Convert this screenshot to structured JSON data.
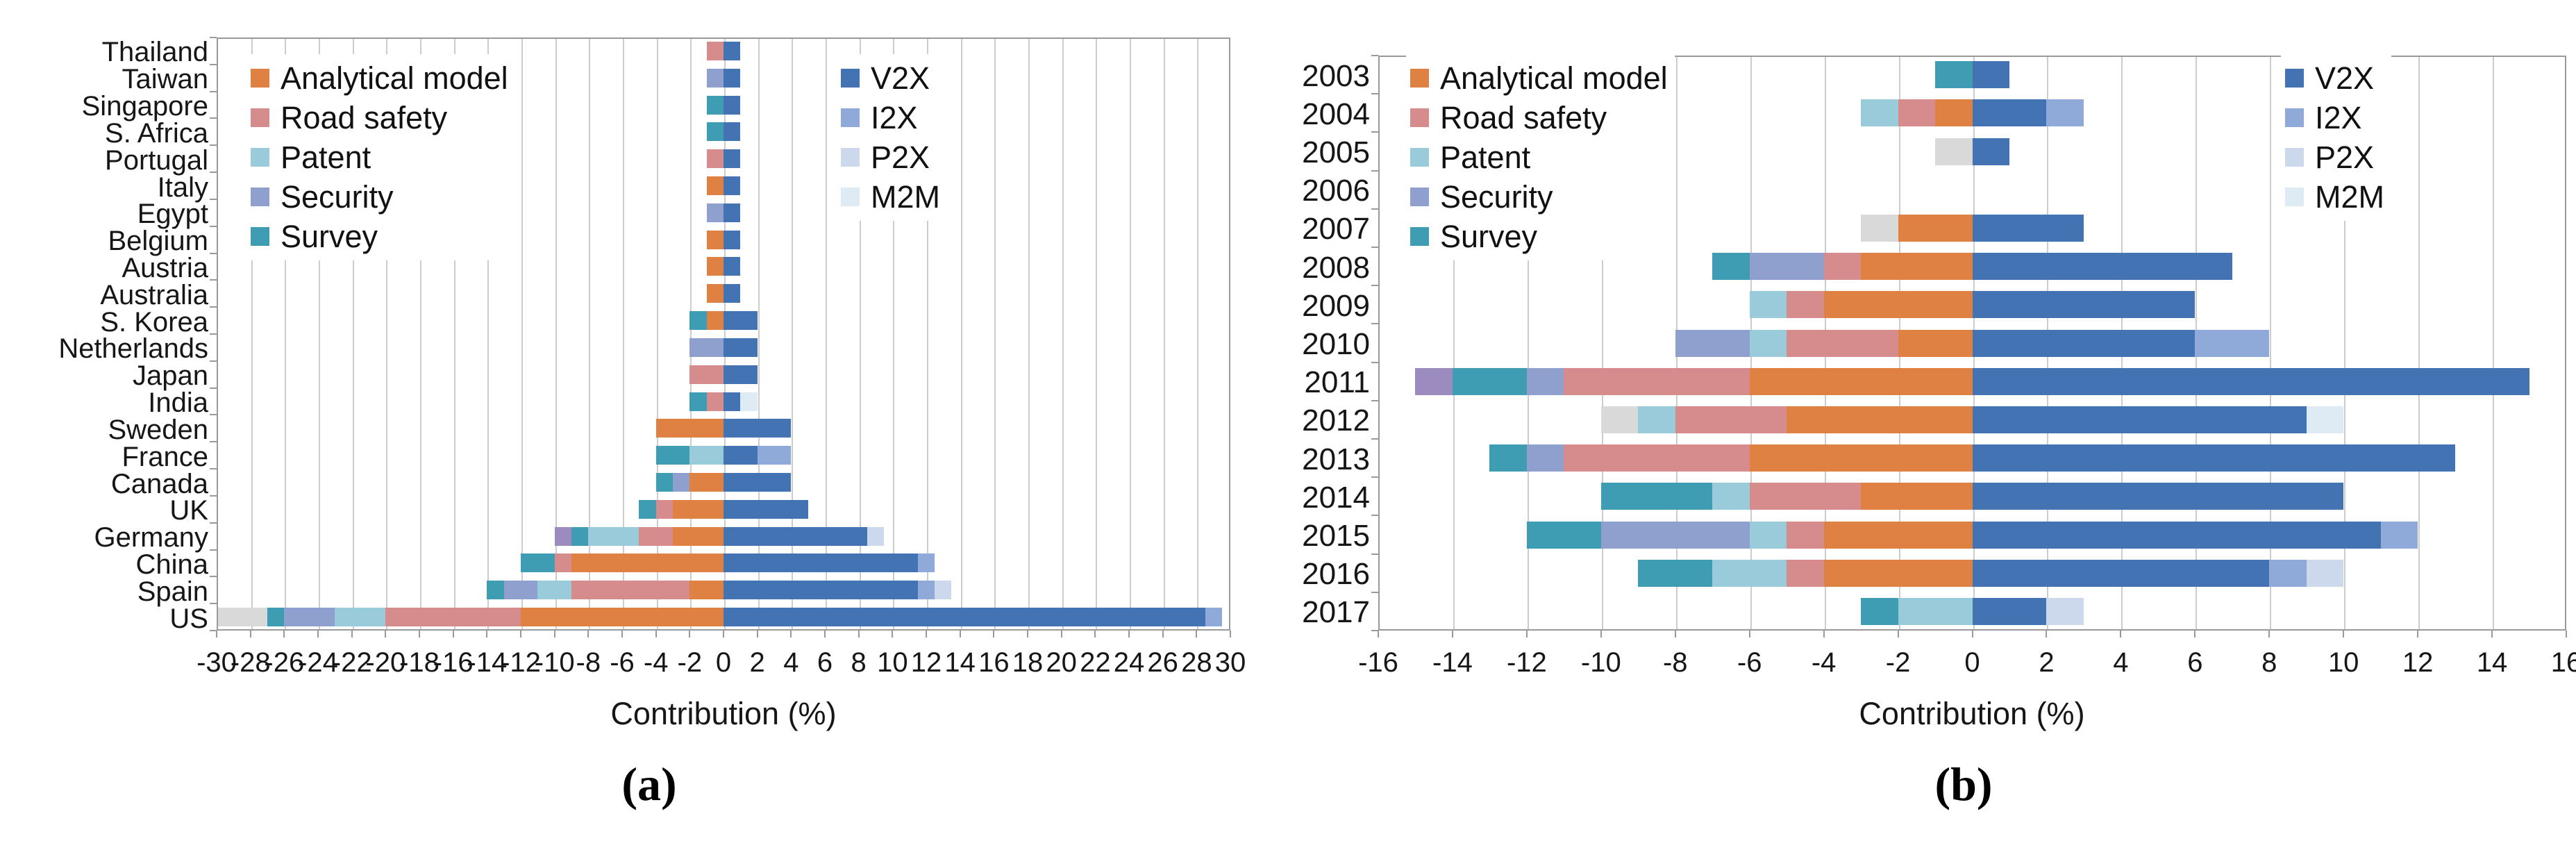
{
  "figure": {
    "description": "Two horizontal diverging stacked bar charts of research contribution percentages",
    "xlabel": "Contribution (%)"
  },
  "colors": {
    "AM": "#de8142",
    "RS": "#d68b8d",
    "PAT": "#9acbdb",
    "SEC": "#8f9fce",
    "SUR": "#3e9db3",
    "V2X": "#4473b3",
    "I2X": "#8faad8",
    "P2X": "#ccd8ec",
    "M2M": "#deebf4",
    "GRAY": "#d9d9d9",
    "PUR": "#9b8bbe"
  },
  "category_labels": {
    "AM": "Analytical model",
    "RS": "Road safety",
    "PAT": "Patent",
    "SEC": "Security",
    "SUR": "Survey",
    "V2X": "V2X",
    "I2X": "I2X",
    "P2X": "P2X",
    "M2M": "M2M",
    "GRAY": "Other (gray, not in legend)",
    "PUR": "Other (purple, not in legend)"
  },
  "legend_left_keys": [
    "AM",
    "RS",
    "PAT",
    "SEC",
    "SUR"
  ],
  "legend_right_keys": [
    "V2X",
    "I2X",
    "P2X",
    "M2M"
  ],
  "chart_data": [
    {
      "id": "a",
      "type": "bar",
      "orientation": "horizontal-diverging-stacked",
      "caption": "(a)",
      "xlabel": "Contribution (%)",
      "xlim": [
        -30,
        30
      ],
      "xtick_step": 2,
      "xticks": [
        -30,
        -28,
        -26,
        -24,
        -22,
        -20,
        -18,
        -16,
        -14,
        -12,
        -10,
        -8,
        -6,
        -4,
        -2,
        0,
        2,
        4,
        6,
        8,
        10,
        12,
        14,
        16,
        18,
        20,
        22,
        24,
        26,
        28,
        30
      ],
      "grid": true,
      "legend_positions": [
        "upper-left-inside",
        "upper-right-inside"
      ],
      "note": "neg and pos segment lists are ordered from the zero line outward; values are percent",
      "rows": [
        {
          "label": "Thailand",
          "neg": [
            [
              "RS",
              1
            ]
          ],
          "pos": [
            [
              "V2X",
              1
            ]
          ]
        },
        {
          "label": "Taiwan",
          "neg": [
            [
              "SEC",
              1
            ]
          ],
          "pos": [
            [
              "V2X",
              1
            ]
          ]
        },
        {
          "label": "Singapore",
          "neg": [
            [
              "SUR",
              1
            ]
          ],
          "pos": [
            [
              "V2X",
              1
            ]
          ]
        },
        {
          "label": "S. Africa",
          "neg": [
            [
              "SUR",
              1
            ]
          ],
          "pos": [
            [
              "V2X",
              1
            ]
          ]
        },
        {
          "label": "Portugal",
          "neg": [
            [
              "RS",
              1
            ]
          ],
          "pos": [
            [
              "V2X",
              1
            ]
          ]
        },
        {
          "label": "Italy",
          "neg": [
            [
              "AM",
              1
            ]
          ],
          "pos": [
            [
              "V2X",
              1
            ]
          ]
        },
        {
          "label": "Egypt",
          "neg": [
            [
              "SEC",
              1
            ]
          ],
          "pos": [
            [
              "V2X",
              1
            ]
          ]
        },
        {
          "label": "Belgium",
          "neg": [
            [
              "AM",
              1
            ]
          ],
          "pos": [
            [
              "V2X",
              1
            ]
          ]
        },
        {
          "label": "Austria",
          "neg": [
            [
              "AM",
              1
            ]
          ],
          "pos": [
            [
              "V2X",
              1
            ]
          ]
        },
        {
          "label": "Australia",
          "neg": [
            [
              "AM",
              1
            ]
          ],
          "pos": [
            [
              "V2X",
              1
            ]
          ]
        },
        {
          "label": "S. Korea",
          "neg": [
            [
              "AM",
              1
            ],
            [
              "SUR",
              1
            ]
          ],
          "pos": [
            [
              "V2X",
              2
            ]
          ]
        },
        {
          "label": "Netherlands",
          "neg": [
            [
              "SEC",
              2
            ]
          ],
          "pos": [
            [
              "V2X",
              2
            ]
          ]
        },
        {
          "label": "Japan",
          "neg": [
            [
              "RS",
              2
            ]
          ],
          "pos": [
            [
              "V2X",
              2
            ]
          ]
        },
        {
          "label": "India",
          "neg": [
            [
              "RS",
              1
            ],
            [
              "SUR",
              1
            ]
          ],
          "pos": [
            [
              "V2X",
              1
            ],
            [
              "M2M",
              1
            ]
          ]
        },
        {
          "label": "Sweden",
          "neg": [
            [
              "AM",
              4
            ]
          ],
          "pos": [
            [
              "V2X",
              4
            ]
          ]
        },
        {
          "label": "France",
          "neg": [
            [
              "PAT",
              2
            ],
            [
              "SUR",
              2
            ]
          ],
          "pos": [
            [
              "V2X",
              2
            ],
            [
              "I2X",
              2
            ]
          ]
        },
        {
          "label": "Canada",
          "neg": [
            [
              "AM",
              2
            ],
            [
              "SEC",
              1
            ],
            [
              "SUR",
              1
            ]
          ],
          "pos": [
            [
              "V2X",
              4
            ]
          ]
        },
        {
          "label": "UK",
          "neg": [
            [
              "AM",
              3
            ],
            [
              "RS",
              1
            ],
            [
              "SUR",
              1
            ]
          ],
          "pos": [
            [
              "V2X",
              5
            ]
          ]
        },
        {
          "label": "Germany",
          "neg": [
            [
              "AM",
              3
            ],
            [
              "RS",
              2
            ],
            [
              "PAT",
              3
            ],
            [
              "SUR",
              1
            ],
            [
              "PUR",
              1
            ]
          ],
          "pos": [
            [
              "V2X",
              8.5
            ],
            [
              "P2X",
              1
            ]
          ]
        },
        {
          "label": "China",
          "neg": [
            [
              "AM",
              9
            ],
            [
              "RS",
              1
            ],
            [
              "SUR",
              2
            ]
          ],
          "pos": [
            [
              "V2X",
              11.5
            ],
            [
              "I2X",
              1
            ]
          ]
        },
        {
          "label": "Spain",
          "neg": [
            [
              "AM",
              2
            ],
            [
              "RS",
              7
            ],
            [
              "PAT",
              2
            ],
            [
              "SEC",
              2
            ],
            [
              "SUR",
              1
            ]
          ],
          "pos": [
            [
              "V2X",
              11.5
            ],
            [
              "I2X",
              1
            ],
            [
              "P2X",
              1
            ]
          ]
        },
        {
          "label": "US",
          "neg": [
            [
              "AM",
              12
            ],
            [
              "RS",
              8
            ],
            [
              "PAT",
              3
            ],
            [
              "SEC",
              3
            ],
            [
              "SUR",
              1
            ],
            [
              "GRAY",
              3.5
            ]
          ],
          "pos": [
            [
              "V2X",
              28.5
            ],
            [
              "I2X",
              1
            ]
          ]
        }
      ]
    },
    {
      "id": "b",
      "type": "bar",
      "orientation": "horizontal-diverging-stacked",
      "caption": "(b)",
      "xlabel": "Contribution (%)",
      "xlim": [
        -16,
        16
      ],
      "xtick_step": 2,
      "xticks": [
        -16,
        -14,
        -12,
        -10,
        -8,
        -6,
        -4,
        -2,
        0,
        2,
        4,
        6,
        8,
        10,
        12,
        14,
        16
      ],
      "grid": true,
      "legend_positions": [
        "upper-left-inside",
        "upper-right-inside"
      ],
      "note": "neg and pos segment lists are ordered from the zero line outward; values are percent",
      "rows": [
        {
          "label": "2003",
          "neg": [
            [
              "SUR",
              1
            ]
          ],
          "pos": [
            [
              "V2X",
              1
            ]
          ]
        },
        {
          "label": "2004",
          "neg": [
            [
              "AM",
              1
            ],
            [
              "RS",
              1
            ],
            [
              "PAT",
              1
            ]
          ],
          "pos": [
            [
              "V2X",
              2
            ],
            [
              "I2X",
              1
            ]
          ]
        },
        {
          "label": "2005",
          "neg": [
            [
              "GRAY",
              1
            ]
          ],
          "pos": [
            [
              "V2X",
              1
            ]
          ]
        },
        {
          "label": "2006",
          "neg": [],
          "pos": []
        },
        {
          "label": "2007",
          "neg": [
            [
              "AM",
              2
            ],
            [
              "GRAY",
              1
            ]
          ],
          "pos": [
            [
              "V2X",
              3
            ]
          ]
        },
        {
          "label": "2008",
          "neg": [
            [
              "AM",
              3
            ],
            [
              "RS",
              1
            ],
            [
              "SEC",
              2
            ],
            [
              "SUR",
              1
            ]
          ],
          "pos": [
            [
              "V2X",
              7
            ]
          ]
        },
        {
          "label": "2009",
          "neg": [
            [
              "AM",
              4
            ],
            [
              "RS",
              1
            ],
            [
              "PAT",
              1
            ]
          ],
          "pos": [
            [
              "V2X",
              6
            ]
          ]
        },
        {
          "label": "2010",
          "neg": [
            [
              "AM",
              2
            ],
            [
              "RS",
              3
            ],
            [
              "PAT",
              1
            ],
            [
              "SEC",
              2
            ]
          ],
          "pos": [
            [
              "V2X",
              6
            ],
            [
              "I2X",
              2
            ]
          ]
        },
        {
          "label": "2011",
          "neg": [
            [
              "AM",
              6
            ],
            [
              "RS",
              5
            ],
            [
              "SEC",
              1
            ],
            [
              "SUR",
              2
            ],
            [
              "PUR",
              1
            ]
          ],
          "pos": [
            [
              "V2X",
              15
            ]
          ]
        },
        {
          "label": "2012",
          "neg": [
            [
              "AM",
              5
            ],
            [
              "RS",
              3
            ],
            [
              "PAT",
              1
            ],
            [
              "GRAY",
              1
            ]
          ],
          "pos": [
            [
              "V2X",
              9
            ],
            [
              "M2M",
              1
            ]
          ]
        },
        {
          "label": "2013",
          "neg": [
            [
              "AM",
              6
            ],
            [
              "RS",
              5
            ],
            [
              "SEC",
              1
            ],
            [
              "SUR",
              1
            ]
          ],
          "pos": [
            [
              "V2X",
              13
            ]
          ]
        },
        {
          "label": "2014",
          "neg": [
            [
              "AM",
              3
            ],
            [
              "RS",
              3
            ],
            [
              "PAT",
              1
            ],
            [
              "SUR",
              3
            ]
          ],
          "pos": [
            [
              "V2X",
              10
            ]
          ]
        },
        {
          "label": "2015",
          "neg": [
            [
              "AM",
              4
            ],
            [
              "RS",
              1
            ],
            [
              "PAT",
              1
            ],
            [
              "SEC",
              4
            ],
            [
              "SUR",
              2
            ]
          ],
          "pos": [
            [
              "V2X",
              11
            ],
            [
              "I2X",
              1
            ]
          ]
        },
        {
          "label": "2016",
          "neg": [
            [
              "AM",
              4
            ],
            [
              "RS",
              1
            ],
            [
              "PAT",
              2
            ],
            [
              "SUR",
              2
            ]
          ],
          "pos": [
            [
              "V2X",
              8
            ],
            [
              "I2X",
              1
            ],
            [
              "P2X",
              1
            ]
          ]
        },
        {
          "label": "2017",
          "neg": [
            [
              "PAT",
              2
            ],
            [
              "SUR",
              1
            ]
          ],
          "pos": [
            [
              "V2X",
              2
            ],
            [
              "P2X",
              1
            ]
          ]
        }
      ]
    }
  ]
}
